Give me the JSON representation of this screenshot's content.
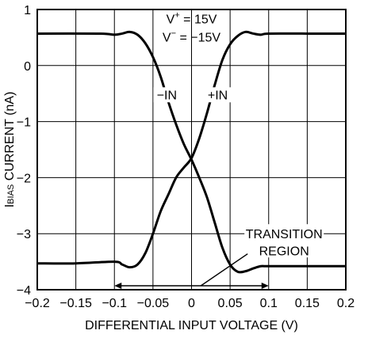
{
  "chart_data": {
    "type": "line",
    "title": "",
    "xlabel": "DIFFERENTIAL INPUT VOLTAGE (V)",
    "ylabel": {
      "main": "I",
      "sub": "BIAS",
      "rest": " CURRENT (nA)"
    },
    "xlim": [
      -0.2,
      0.2
    ],
    "ylim": [
      -4,
      1
    ],
    "x_ticks": [
      -0.2,
      -0.15,
      -0.1,
      -0.05,
      0,
      0.05,
      0.1,
      0.15,
      0.2
    ],
    "x_tick_labels": [
      "−0.2",
      "−0.15",
      "−0.1",
      "−0.05",
      "0",
      "0.05",
      "0.1",
      "0.15",
      "0.2"
    ],
    "y_ticks": [
      1,
      0,
      -1,
      -2,
      -3,
      -4
    ],
    "y_tick_labels": [
      "1",
      "0",
      "−1",
      "−2",
      "−3",
      "−4"
    ],
    "grid": true,
    "annotations": {
      "vplus": {
        "base": "V",
        "sup": "+",
        "rest": " = 15V"
      },
      "vminus": {
        "base": "V",
        "sup": "−",
        "rest": " = −15V"
      },
      "transition": [
        "TRANSITION",
        "REGION"
      ],
      "transition_range": [
        -0.1,
        0.1
      ]
    },
    "series": [
      {
        "name": "−IN",
        "x": [
          -0.2,
          -0.12,
          -0.1,
          -0.09,
          -0.08,
          -0.07,
          -0.06,
          -0.05,
          -0.04,
          -0.03,
          -0.02,
          -0.01,
          0,
          0.01,
          0.02,
          0.03,
          0.04,
          0.05,
          0.06,
          0.07,
          0.08,
          0.09,
          0.1,
          0.15,
          0.2
        ],
        "y": [
          0.57,
          0.57,
          0.55,
          0.57,
          0.6,
          0.55,
          0.4,
          0.15,
          -0.2,
          -0.65,
          -1.05,
          -1.4,
          -1.68,
          -2.0,
          -2.35,
          -2.8,
          -3.25,
          -3.55,
          -3.68,
          -3.67,
          -3.62,
          -3.58,
          -3.58,
          -3.58,
          -3.58
        ]
      },
      {
        "name": "+IN",
        "x": [
          -0.2,
          -0.15,
          -0.1,
          -0.09,
          -0.08,
          -0.07,
          -0.06,
          -0.05,
          -0.04,
          -0.03,
          -0.02,
          -0.01,
          0,
          0.01,
          0.02,
          0.03,
          0.04,
          0.05,
          0.06,
          0.07,
          0.08,
          0.09,
          0.1,
          0.15,
          0.2
        ],
        "y": [
          -3.53,
          -3.53,
          -3.5,
          -3.55,
          -3.6,
          -3.55,
          -3.35,
          -3.0,
          -2.6,
          -2.3,
          -2.0,
          -1.82,
          -1.65,
          -1.3,
          -0.85,
          -0.35,
          0.1,
          0.38,
          0.53,
          0.6,
          0.57,
          0.55,
          0.57,
          0.57,
          0.57
        ]
      }
    ]
  }
}
